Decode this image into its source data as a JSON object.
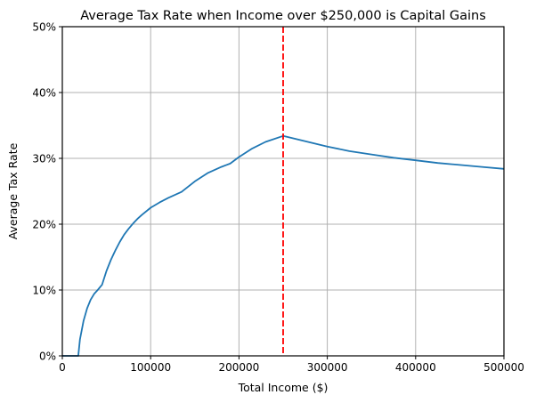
{
  "chart_data": {
    "type": "line",
    "title": "Average Tax Rate when Income over $250,000 is Capital Gains",
    "xlabel": "Total Income ($)",
    "ylabel": "Average Tax Rate",
    "xlim": [
      0,
      500000
    ],
    "ylim": [
      0,
      50
    ],
    "x_ticks": [
      0,
      100000,
      200000,
      300000,
      400000,
      500000
    ],
    "x_tick_labels": [
      "0",
      "100000",
      "200000",
      "300000",
      "400000",
      "500000"
    ],
    "y_ticks": [
      0,
      10,
      20,
      30,
      40,
      50
    ],
    "y_tick_labels": [
      "0%",
      "10%",
      "20%",
      "30%",
      "40%",
      "50%"
    ],
    "grid": true,
    "series": [
      {
        "name": "Average Tax Rate",
        "color": "#1f77b4",
        "x": [
          0,
          18000,
          20000,
          24000,
          28000,
          32000,
          36000,
          40000,
          45000,
          50000,
          55000,
          60000,
          65000,
          70000,
          75000,
          80000,
          85000,
          90000,
          100000,
          110000,
          120000,
          135000,
          150000,
          165000,
          180000,
          190000,
          200000,
          215000,
          230000,
          250000,
          275000,
          300000,
          325000,
          350000,
          375000,
          400000,
          425000,
          450000,
          475000,
          500000
        ],
        "y": [
          0,
          0,
          2.5,
          5.3,
          7.2,
          8.5,
          9.4,
          10.0,
          10.8,
          12.9,
          14.6,
          16.0,
          17.3,
          18.4,
          19.3,
          20.1,
          20.8,
          21.4,
          22.5,
          23.3,
          24.0,
          24.9,
          26.5,
          27.8,
          28.7,
          29.2,
          30.2,
          31.5,
          32.5,
          33.4,
          32.6,
          31.8,
          31.1,
          30.6,
          30.1,
          29.7,
          29.3,
          29.0,
          28.7,
          28.4
        ]
      }
    ],
    "annotations": [
      {
        "type": "vline",
        "x": 250000,
        "color": "#ff0000",
        "style": "dashed"
      }
    ]
  }
}
